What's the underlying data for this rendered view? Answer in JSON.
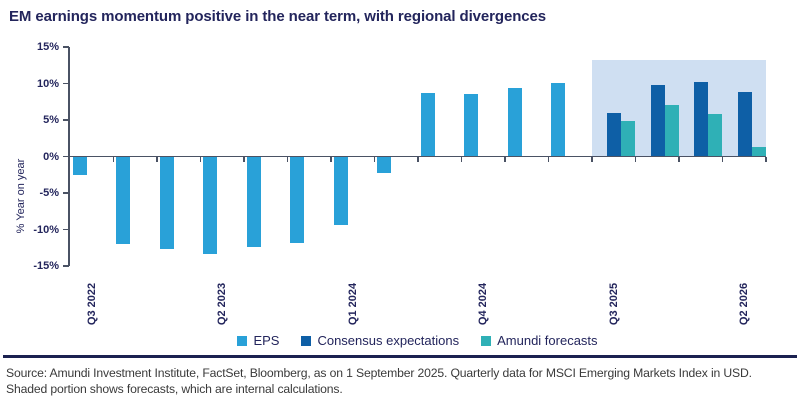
{
  "title": "EM earnings momentum positive in the near term, with regional divergences",
  "chart_data": {
    "type": "bar",
    "title": "EM earnings momentum positive in the near term, with regional divergences",
    "ylabel": "% Year on year",
    "ylim": [
      -15,
      15
    ],
    "yticks": [
      15,
      10,
      5,
      0,
      -5,
      -10,
      -15
    ],
    "ytick_labels": [
      "15%",
      "10%",
      "5%",
      "0%",
      "-5%",
      "-10%",
      "-15%"
    ],
    "categories": [
      "Q3 2022",
      "Q4 2022",
      "Q1 2023",
      "Q2 2023",
      "Q3 2023",
      "Q4 2023",
      "Q1 2024",
      "Q2 2024",
      "Q3 2024",
      "Q4 2024",
      "Q1 2025",
      "Q2 2025",
      "Q3 2025",
      "Q4 2025",
      "Q1 2026",
      "Q2 2026"
    ],
    "xtick_labels_shown": [
      "Q3 2022",
      "Q2 2023",
      "Q1 2024",
      "Q4 2024",
      "Q3 2025",
      "Q2 2026"
    ],
    "xtick_label_indices": [
      0,
      3,
      6,
      9,
      12,
      15
    ],
    "series": [
      {
        "name": "EPS",
        "color": "#29a1d8",
        "values": [
          -2.5,
          -12.0,
          -12.7,
          -13.4,
          -12.4,
          -11.8,
          -9.4,
          -2.3,
          8.7,
          8.6,
          9.4,
          10.1,
          null,
          null,
          null,
          null
        ]
      },
      {
        "name": "Consensus expectations",
        "color": "#0e5fa6",
        "values": [
          null,
          null,
          null,
          null,
          null,
          null,
          null,
          null,
          null,
          null,
          null,
          null,
          6.0,
          9.8,
          10.2,
          8.9
        ]
      },
      {
        "name": "Amundi forecasts",
        "color": "#2fb0b6",
        "values": [
          null,
          null,
          null,
          null,
          null,
          null,
          null,
          null,
          null,
          null,
          null,
          null,
          4.8,
          7.0,
          5.8,
          1.3
        ]
      }
    ],
    "shaded_region": {
      "from": "Q3 2025",
      "to": "Q2 2026",
      "from_index": 12,
      "to_index": 15,
      "color": "#cfdff2",
      "meaning": "forecast period"
    },
    "legend": [
      "EPS",
      "Consensus expectations",
      "Amundi forecasts"
    ],
    "legend_position": "bottom",
    "grid": false
  },
  "colors": {
    "title_text": "#23255c",
    "axis_line": "#4a5264",
    "axis_text": "#23255c",
    "divider": "#1b2150",
    "footer_text": "#3a3a3a",
    "background": "#ffffff"
  },
  "footer": {
    "line1": "Source: Amundi Investment Institute, FactSet, Bloomberg, as on 1 September 2025. Quarterly data for MSCI Emerging Markets Index in USD.",
    "line2": "Shaded portion shows forecasts, which are internal calculations."
  }
}
